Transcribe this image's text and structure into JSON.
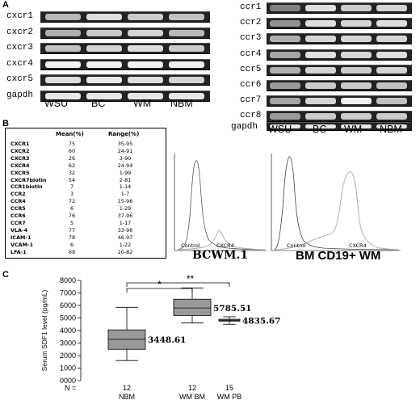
{
  "panels": {
    "a": "A",
    "b": "B",
    "c": "C"
  },
  "panel_a": {
    "left_gel": {
      "rows": [
        {
          "label": "cxcr1",
          "bands": [
            0.65,
            0.85,
            0.75,
            0.7
          ]
        },
        {
          "label": "cxcr2",
          "bands": [
            0.6,
            0.75,
            0.8,
            0.65
          ]
        },
        {
          "label": "cxcr3",
          "bands": [
            0.7,
            0.8,
            0.85,
            0.75
          ]
        },
        {
          "label": "cxcr4",
          "bands": [
            0.95,
            0.95,
            0.95,
            0.95
          ]
        },
        {
          "label": "cxcr5",
          "bands": [
            0.85,
            0.9,
            0.85,
            0.8
          ]
        },
        {
          "label": "gapdh",
          "bands": [
            0.9,
            0.9,
            0.9,
            0.9
          ]
        }
      ],
      "lanes": [
        "WSU",
        "BC",
        "WM",
        "NBM"
      ]
    },
    "right_gel": {
      "rows": [
        {
          "label": "ccr1",
          "bands": [
            0.35,
            0.85,
            0.75,
            0.8
          ]
        },
        {
          "label": "ccr2",
          "bands": [
            0.45,
            0.85,
            0.8,
            0.85
          ]
        },
        {
          "label": "ccr3",
          "bands": [
            0.6,
            0.8,
            0.8,
            0.8
          ]
        },
        {
          "label": "ccr4",
          "bands": [
            0.55,
            0.85,
            0.8,
            0.85
          ]
        },
        {
          "label": "ccr5",
          "bands": [
            0.6,
            0.8,
            0.75,
            0.8
          ]
        },
        {
          "label": "ccr6",
          "bands": [
            0.5,
            0.75,
            0.75,
            0.7
          ]
        },
        {
          "label": "ccr7",
          "bands": [
            0.55,
            0.8,
            0.95,
            0.7
          ]
        },
        {
          "label": "ccr8",
          "bands": [
            0.5,
            0.75,
            0.75,
            0.75
          ]
        }
      ],
      "gapdh_label": "gapdh",
      "gapdh_bands": [
        0.9,
        0.9,
        0.9,
        0.9
      ],
      "lanes": [
        "WSU",
        "BC",
        "WM",
        "NBM"
      ]
    }
  },
  "panel_b": {
    "table": {
      "headers": [
        "",
        "Mean(%)",
        "Range(%)"
      ],
      "rows": [
        [
          "CXCR1",
          "75",
          "35-95"
        ],
        [
          "CXCR2",
          "60",
          "24-91"
        ],
        [
          "CXCR3",
          "26",
          "3-90"
        ],
        [
          "CXCR4",
          "62",
          "24-94"
        ],
        [
          "CXCR5",
          "32",
          "1-99"
        ],
        [
          "CXCR7biotin",
          "54",
          "2-81"
        ],
        [
          "CCR1biotin",
          "7",
          "1-14"
        ],
        [
          "CCR2",
          "3",
          "1-7"
        ],
        [
          "CCR4",
          "72",
          "15-96"
        ],
        [
          "CCR5",
          "6",
          "1-29"
        ],
        [
          "CCR6",
          "76",
          "37-96"
        ],
        [
          "CCR7",
          "5",
          "1-17"
        ],
        [
          "VLA-4",
          "77",
          "33-96"
        ],
        [
          "ICAM-1",
          "78",
          "46-97"
        ],
        [
          "VCAM-1",
          "6",
          "1-22"
        ],
        [
          "LFA-1",
          "69",
          "20-82"
        ]
      ]
    },
    "flow_left": {
      "title": "BCWM.1",
      "control": "Control",
      "cxcr4": "CXCR4"
    },
    "flow_right": {
      "title": "BM CD19+ WM",
      "control": "Control",
      "cxcr4": "CXCR4"
    }
  },
  "chart_data": {
    "type": "box",
    "ylabel": "Serum SDF1 level (pg/mL)",
    "ylim": [
      0,
      8000
    ],
    "yticks": [
      "0000",
      "1000",
      "2000",
      "3000",
      "4000",
      "5000",
      "6000",
      "7000",
      "8000"
    ],
    "categories": [
      "NBM",
      "WM BM",
      "WM PB"
    ],
    "n_label": "N =",
    "n": [
      "12",
      "12",
      "15"
    ],
    "boxes": [
      {
        "category": "NBM",
        "min": 1600,
        "q1": 2500,
        "median": 3300,
        "q3": 4050,
        "max": 5850,
        "label": "3448.61"
      },
      {
        "category": "WM BM",
        "min": 4600,
        "q1": 5200,
        "median": 5800,
        "q3": 6500,
        "max": 7400,
        "label": "5785.51"
      },
      {
        "category": "WM PB",
        "min": 4500,
        "q1": 4750,
        "median": 4820,
        "q3": 4900,
        "max": 5100,
        "label": "4835.67"
      }
    ],
    "significance": [
      {
        "from": "NBM",
        "to": "WM BM",
        "mark": "*"
      },
      {
        "from": "NBM",
        "to": "WM PB",
        "mark": "**"
      }
    ]
  }
}
